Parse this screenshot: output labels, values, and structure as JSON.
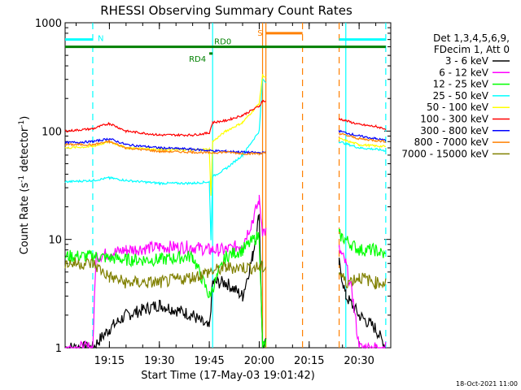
{
  "chart_data": {
    "type": "line",
    "title": "RHESSI Observing Summary Count Rates",
    "xlabel": "Start Time (17-May-03 19:01:42)",
    "ylabel_main": "Count Rate (s",
    "ylabel_exp1": "-1",
    "ylabel_mid": " detector",
    "ylabel_exp2": "-1",
    "ylabel_end": ")",
    "yscale": "log",
    "ylim": [
      1,
      1000
    ],
    "xlim": [
      "19:01:42",
      "20:39:30"
    ],
    "x_ticks": [
      "19:15",
      "19:30",
      "19:45",
      "20:00",
      "20:15",
      "20:30"
    ],
    "y_ticks": [
      "1",
      "10",
      "100",
      "1000"
    ],
    "timestamp": "18-Oct-2021 11:00",
    "legend_header": [
      "Det 1,3,4,5,6,9,",
      "FDecim 1, Att 0"
    ],
    "series": [
      {
        "name": "3 - 6 keV",
        "color": "#000000",
        "x": [
          "19:01:42",
          "19:10",
          "19:15",
          "19:20",
          "19:30",
          "19:40",
          "19:45",
          "19:46",
          "19:50",
          "19:55",
          "19:58",
          "20:00",
          "20:01",
          "20:24",
          "20:26",
          "20:30",
          "20:35",
          "20:38"
        ],
        "y": [
          1,
          1,
          1.5,
          2,
          2.5,
          2,
          1.5,
          4,
          4,
          3,
          7,
          17,
          1,
          6,
          3,
          2,
          1.5,
          1
        ]
      },
      {
        "name": "6 - 12 keV",
        "color": "#ff00ff",
        "x": [
          "19:01:42",
          "19:10",
          "19:11",
          "19:20",
          "19:30",
          "19:40",
          "19:45",
          "19:50",
          "19:55",
          "19:58",
          "20:00",
          "20:01",
          "20:24",
          "20:26",
          "20:28",
          "20:30",
          "20:35",
          "20:38"
        ],
        "y": [
          1,
          1,
          7,
          8,
          8.5,
          8.5,
          8,
          8,
          9,
          15,
          23,
          12,
          8,
          6,
          3,
          1,
          1,
          1
        ]
      },
      {
        "name": "12 - 25 keV",
        "color": "#00ff00",
        "x": [
          "19:01:42",
          "19:10",
          "19:20",
          "19:30",
          "19:40",
          "19:45",
          "19:50",
          "19:55",
          "20:00",
          "20:01",
          "20:24",
          "20:30",
          "20:35",
          "20:38"
        ],
        "y": [
          7,
          7,
          6.5,
          6.5,
          7,
          3,
          7,
          8,
          11,
          1,
          11,
          8,
          8,
          7
        ]
      },
      {
        "name": "25 - 50 keV",
        "color": "#00ffff",
        "x": [
          "19:01:42",
          "19:10",
          "19:15",
          "19:20",
          "19:30",
          "19:40",
          "19:45",
          "19:45:30",
          "19:46",
          "19:50",
          "19:55",
          "20:00",
          "20:01",
          "20:24",
          "20:30",
          "20:35",
          "20:38"
        ],
        "y": [
          34,
          35,
          37,
          35,
          33,
          33,
          34,
          10,
          38,
          45,
          60,
          100,
          300,
          80,
          70,
          68,
          66
        ]
      },
      {
        "name": "50 - 100 keV",
        "color": "#ffff00",
        "x": [
          "19:01:42",
          "19:10",
          "19:15",
          "19:20",
          "19:30",
          "19:40",
          "19:45",
          "19:45:30",
          "19:46",
          "19:50",
          "19:55",
          "20:00",
          "20:01",
          "20:24",
          "20:30",
          "20:35",
          "20:38"
        ],
        "y": [
          70,
          72,
          80,
          70,
          68,
          67,
          68,
          25,
          80,
          100,
          120,
          180,
          330,
          85,
          75,
          73,
          72
        ]
      },
      {
        "name": "100 - 300 keV",
        "color": "#ff0000",
        "x": [
          "19:01:42",
          "19:10",
          "19:15",
          "19:20",
          "19:30",
          "19:40",
          "19:45",
          "19:46",
          "19:50",
          "19:55",
          "20:00",
          "20:01",
          "20:24",
          "20:30",
          "20:35",
          "20:38"
        ],
        "y": [
          100,
          105,
          118,
          100,
          92,
          92,
          96,
          120,
          125,
          140,
          170,
          190,
          130,
          115,
          110,
          105
        ]
      },
      {
        "name": "300 - 800 keV",
        "color": "#0000ff",
        "x": [
          "19:01:42",
          "19:10",
          "19:15",
          "19:20",
          "19:30",
          "19:40",
          "19:45",
          "19:50",
          "19:55",
          "20:00",
          "20:01",
          "20:24",
          "20:30",
          "20:35",
          "20:38"
        ],
        "y": [
          78,
          80,
          85,
          75,
          70,
          68,
          66,
          65,
          64,
          63,
          63,
          100,
          90,
          85,
          82
        ]
      },
      {
        "name": "800 - 7000 keV",
        "color": "#ff8000",
        "x": [
          "19:01:42",
          "19:10",
          "19:15",
          "19:20",
          "19:30",
          "19:40",
          "19:45",
          "19:50",
          "19:55",
          "20:00",
          "20:01",
          "20:24",
          "20:30",
          "20:35",
          "20:38"
        ],
        "y": [
          75,
          75,
          80,
          70,
          65,
          64,
          63,
          64,
          62,
          62,
          62,
          95,
          85,
          82,
          80
        ]
      },
      {
        "name": "7000 - 15000 keV",
        "color": "#808000",
        "x": [
          "19:01:42",
          "19:10",
          "19:15",
          "19:20",
          "19:30",
          "19:40",
          "19:45",
          "19:50",
          "19:55",
          "20:00",
          "20:01",
          "20:24",
          "20:26",
          "20:30",
          "20:35",
          "20:38"
        ],
        "y": [
          6,
          6,
          4.5,
          4,
          4,
          4.5,
          5,
          5.5,
          5.5,
          5.5,
          5.5,
          5,
          4,
          4.5,
          4,
          4
        ]
      }
    ],
    "flags": [
      {
        "label": "N",
        "color": "#00ffff",
        "y_level": 700,
        "segments": [
          [
            "19:01:42",
            "19:10"
          ],
          [
            "20:24",
            "20:38"
          ]
        ]
      },
      {
        "label": "S",
        "color": "#ff8000",
        "y_level": 800,
        "segments": [
          [
            "20:02",
            "20:13"
          ]
        ]
      },
      {
        "label": "RD0",
        "color": "#008000",
        "y_level": 600,
        "segments": [
          [
            "19:01:42",
            "20:38"
          ]
        ]
      },
      {
        "label": "RD4",
        "color": "#008000",
        "y_level": 520,
        "segments": [
          [
            "19:45",
            "19:46"
          ]
        ]
      }
    ],
    "vertical_lines": [
      {
        "time": "19:10",
        "color": "#00ffff",
        "style": "dashed"
      },
      {
        "time": "19:46",
        "color": "#00ffff",
        "style": "solid"
      },
      {
        "time": "20:01",
        "color": "#ff8000",
        "style": "solid"
      },
      {
        "time": "20:02",
        "color": "#ff8000",
        "style": "solid"
      },
      {
        "time": "20:13",
        "color": "#ff8000",
        "style": "dashed"
      },
      {
        "time": "20:24",
        "color": "#ff8000",
        "style": "dashed"
      },
      {
        "time": "20:26",
        "color": "#00ffff",
        "style": "solid"
      },
      {
        "time": "20:38",
        "color": "#00ffff",
        "style": "dashed"
      }
    ],
    "data_gap": [
      "20:02",
      "20:24"
    ]
  }
}
